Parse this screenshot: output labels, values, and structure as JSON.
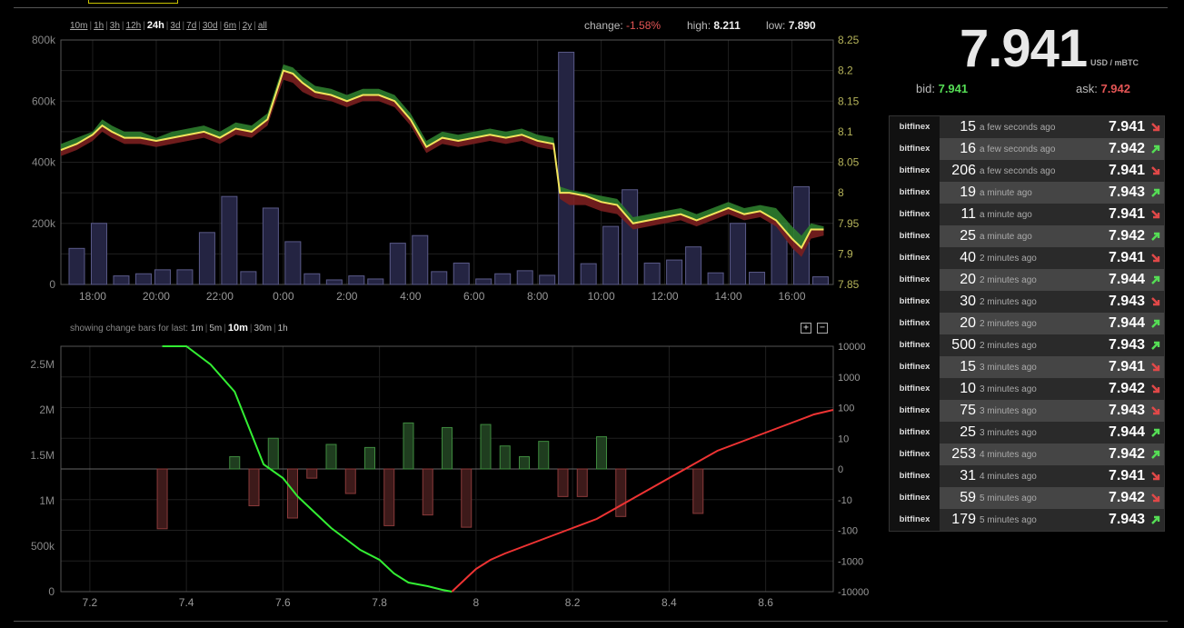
{
  "range_links": [
    "10m",
    "1h",
    "3h",
    "12h",
    "24h",
    "3d",
    "7d",
    "30d",
    "6m",
    "2y",
    "all"
  ],
  "active_range": "24h",
  "stats": {
    "change_label": "change:",
    "change": "-1.58%",
    "high_label": "high:",
    "high": "8.211",
    "low_label": "low:",
    "low": "7.890"
  },
  "change_bars": {
    "label": "showing change bars for last:",
    "options": [
      "1m",
      "5m",
      "10m",
      "30m",
      "1h"
    ],
    "active": "10m",
    "zoom_in": "+",
    "zoom_out": "−"
  },
  "ticker": {
    "price": "7.941",
    "unit": "USD / mBTC",
    "bid_label": "bid:",
    "bid": "7.941",
    "ask_label": "ask:",
    "ask": "7.942"
  },
  "colors": {
    "up": "#55dd55",
    "down": "#e04848",
    "price_line": "#f2e55c",
    "volume_fill": "#242442",
    "volume_stroke": "#5a5a88"
  },
  "trades": [
    {
      "exchange": "bitfinex",
      "amount": "15",
      "time": "a few seconds ago",
      "price": "7.941",
      "dir": "down"
    },
    {
      "exchange": "bitfinex",
      "amount": "16",
      "time": "a few seconds ago",
      "price": "7.942",
      "dir": "up"
    },
    {
      "exchange": "bitfinex",
      "amount": "206",
      "time": "a few seconds ago",
      "price": "7.941",
      "dir": "down"
    },
    {
      "exchange": "bitfinex",
      "amount": "19",
      "time": "a minute ago",
      "price": "7.943",
      "dir": "up"
    },
    {
      "exchange": "bitfinex",
      "amount": "11",
      "time": "a minute ago",
      "price": "7.941",
      "dir": "down"
    },
    {
      "exchange": "bitfinex",
      "amount": "25",
      "time": "a minute ago",
      "price": "7.942",
      "dir": "up"
    },
    {
      "exchange": "bitfinex",
      "amount": "40",
      "time": "2 minutes ago",
      "price": "7.941",
      "dir": "down"
    },
    {
      "exchange": "bitfinex",
      "amount": "20",
      "time": "2 minutes ago",
      "price": "7.944",
      "dir": "up"
    },
    {
      "exchange": "bitfinex",
      "amount": "30",
      "time": "2 minutes ago",
      "price": "7.943",
      "dir": "down"
    },
    {
      "exchange": "bitfinex",
      "amount": "20",
      "time": "2 minutes ago",
      "price": "7.944",
      "dir": "up"
    },
    {
      "exchange": "bitfinex",
      "amount": "500",
      "time": "2 minutes ago",
      "price": "7.943",
      "dir": "up"
    },
    {
      "exchange": "bitfinex",
      "amount": "15",
      "time": "3 minutes ago",
      "price": "7.941",
      "dir": "down"
    },
    {
      "exchange": "bitfinex",
      "amount": "10",
      "time": "3 minutes ago",
      "price": "7.942",
      "dir": "down"
    },
    {
      "exchange": "bitfinex",
      "amount": "75",
      "time": "3 minutes ago",
      "price": "7.943",
      "dir": "down"
    },
    {
      "exchange": "bitfinex",
      "amount": "25",
      "time": "3 minutes ago",
      "price": "7.944",
      "dir": "up"
    },
    {
      "exchange": "bitfinex",
      "amount": "253",
      "time": "4 minutes ago",
      "price": "7.942",
      "dir": "up"
    },
    {
      "exchange": "bitfinex",
      "amount": "31",
      "time": "4 minutes ago",
      "price": "7.941",
      "dir": "down"
    },
    {
      "exchange": "bitfinex",
      "amount": "59",
      "time": "5 minutes ago",
      "price": "7.942",
      "dir": "down"
    },
    {
      "exchange": "bitfinex",
      "amount": "179",
      "time": "5 minutes ago",
      "price": "7.943",
      "dir": "up"
    }
  ],
  "chart_data": [
    {
      "type": "line",
      "x_ticks": [
        "18:00",
        "20:00",
        "22:00",
        "0:00",
        "2:00",
        "4:00",
        "6:00",
        "8:00",
        "10:00",
        "12:00",
        "14:00",
        "16:00"
      ],
      "x_tick_hours": [
        18,
        20,
        22,
        24,
        26,
        28,
        30,
        32,
        34,
        36,
        38,
        40
      ],
      "x_range_hours": [
        17.0,
        41.3
      ],
      "y_left": {
        "ticks": [
          "0",
          "200k",
          "400k",
          "600k",
          "800k"
        ],
        "values": [
          0,
          200000,
          400000,
          600000,
          800000
        ],
        "range": [
          0,
          800000
        ]
      },
      "y_right": {
        "ticks": [
          "7.85",
          "7.9",
          "7.95",
          "8",
          "8.05",
          "8.1",
          "8.15",
          "8.2",
          "8.25"
        ],
        "values": [
          7.85,
          7.9,
          7.95,
          8,
          8.05,
          8.1,
          8.15,
          8.2,
          8.25
        ],
        "range": [
          7.85,
          8.25
        ]
      },
      "volume_hours": [
        17.5,
        18.2,
        18.9,
        19.6,
        20.2,
        20.9,
        21.6,
        22.3,
        22.9,
        23.6,
        24.3,
        24.9,
        25.6,
        26.3,
        26.9,
        27.6,
        28.3,
        28.9,
        29.6,
        30.3,
        30.9,
        31.6,
        32.3,
        32.9,
        33.6,
        34.3,
        34.9,
        35.6,
        36.3,
        36.9,
        37.6,
        38.3,
        38.9,
        39.6,
        40.3,
        40.9
      ],
      "volume": [
        118000,
        200000,
        28000,
        35000,
        48000,
        48000,
        170000,
        288000,
        42000,
        250000,
        140000,
        35000,
        15000,
        28000,
        18000,
        135000,
        160000,
        42000,
        70000,
        18000,
        35000,
        45000,
        30000,
        760000,
        68000,
        190000,
        310000,
        70000,
        80000,
        123000,
        38000,
        200000,
        40000,
        200000,
        320000,
        25000
      ],
      "price_hours": [
        17,
        17.5,
        18,
        18.3,
        18.6,
        19,
        19.5,
        20,
        20.5,
        21,
        21.5,
        22,
        22.5,
        23,
        23.5,
        24,
        24.3,
        24.6,
        25,
        25.5,
        26,
        26.5,
        27,
        27.5,
        28,
        28.5,
        29,
        29.5,
        30,
        30.5,
        31,
        31.5,
        32,
        32.5,
        32.7,
        33,
        33.5,
        34,
        34.5,
        35,
        35.5,
        36,
        36.5,
        37,
        37.5,
        38,
        38.5,
        39,
        39.5,
        40,
        40.3,
        40.6,
        41
      ],
      "price": [
        8.07,
        8.08,
        8.095,
        8.11,
        8.1,
        8.09,
        8.09,
        8.085,
        8.09,
        8.095,
        8.1,
        8.09,
        8.105,
        8.1,
        8.12,
        8.2,
        8.195,
        8.18,
        8.165,
        8.16,
        8.15,
        8.16,
        8.16,
        8.15,
        8.12,
        8.075,
        8.09,
        8.085,
        8.09,
        8.095,
        8.09,
        8.095,
        8.085,
        8.08,
        8.0,
        8.0,
        7.995,
        7.985,
        7.98,
        7.95,
        7.955,
        7.96,
        7.965,
        7.955,
        7.965,
        7.975,
        7.965,
        7.97,
        7.955,
        7.925,
        7.91,
        7.94,
        7.94
      ],
      "price_high": [
        8.08,
        8.09,
        8.1,
        8.12,
        8.11,
        8.1,
        8.1,
        8.09,
        8.1,
        8.105,
        8.11,
        8.1,
        8.115,
        8.11,
        8.13,
        8.21,
        8.205,
        8.19,
        8.175,
        8.17,
        8.16,
        8.17,
        8.17,
        8.16,
        8.13,
        8.085,
        8.1,
        8.095,
        8.1,
        8.105,
        8.1,
        8.105,
        8.095,
        8.09,
        8.01,
        8.005,
        8.0,
        7.995,
        7.99,
        7.96,
        7.965,
        7.97,
        7.975,
        7.965,
        7.975,
        7.985,
        7.975,
        7.98,
        7.975,
        7.945,
        7.93,
        7.95,
        7.945
      ],
      "price_low": [
        8.06,
        8.07,
        8.085,
        8.1,
        8.09,
        8.08,
        8.08,
        8.075,
        8.08,
        8.085,
        8.09,
        8.08,
        8.095,
        8.09,
        8.11,
        8.185,
        8.18,
        8.165,
        8.155,
        8.15,
        8.14,
        8.15,
        8.15,
        8.14,
        8.11,
        8.065,
        8.08,
        8.075,
        8.08,
        8.085,
        8.08,
        8.085,
        8.075,
        8.07,
        7.99,
        7.98,
        7.98,
        7.97,
        7.965,
        7.94,
        7.945,
        7.95,
        7.955,
        7.945,
        7.955,
        7.965,
        7.955,
        7.96,
        7.945,
        7.91,
        7.895,
        7.925,
        7.93
      ]
    },
    {
      "type": "bar",
      "x_ticks": [
        "7.2",
        "7.4",
        "7.6",
        "7.8",
        "8",
        "8.2",
        "8.4",
        "8.6"
      ],
      "x_tick_values": [
        7.2,
        7.4,
        7.6,
        7.8,
        8,
        8.2,
        8.4,
        8.6
      ],
      "x_range": [
        7.14,
        8.74
      ],
      "y_left": {
        "ticks": [
          "0",
          "500k",
          "1M",
          "1.5M",
          "2M",
          "2.5M"
        ],
        "values": [
          0,
          500000,
          1000000,
          1500000,
          2000000,
          2500000
        ],
        "range": [
          0,
          2700000
        ]
      },
      "y_right": {
        "ticks": [
          "10000",
          "1000",
          "100",
          "10",
          "0",
          "-10",
          "-100",
          "-1000",
          "-10000"
        ],
        "levels": [
          4,
          3,
          2,
          1,
          0,
          -1,
          -2,
          -3,
          -4
        ]
      },
      "bids_depth_x": [
        7.35,
        7.38,
        7.4,
        7.45,
        7.5,
        7.53,
        7.56,
        7.6,
        7.63,
        7.66,
        7.7,
        7.73,
        7.76,
        7.8,
        7.83,
        7.86,
        7.9,
        7.93,
        7.95
      ],
      "bids_depth": [
        2700000,
        2700000,
        2700000,
        2500000,
        2200000,
        1800000,
        1400000,
        1250000,
        1050000,
        900000,
        700000,
        580000,
        460000,
        350000,
        200000,
        100000,
        60000,
        20000,
        0
      ],
      "asks_depth_x": [
        7.95,
        7.98,
        8.0,
        8.03,
        8.06,
        8.1,
        8.15,
        8.2,
        8.25,
        8.3,
        8.35,
        8.4,
        8.45,
        8.5,
        8.55,
        8.6,
        8.65,
        8.7,
        8.74
      ],
      "asks_depth": [
        0,
        150000,
        250000,
        350000,
        420000,
        500000,
        600000,
        700000,
        800000,
        950000,
        1100000,
        1250000,
        1400000,
        1550000,
        1650000,
        1750000,
        1850000,
        1950000,
        2000000
      ],
      "change_bar_x": [
        7.35,
        7.5,
        7.54,
        7.58,
        7.62,
        7.66,
        7.7,
        7.74,
        7.78,
        7.82,
        7.86,
        7.9,
        7.94,
        7.98,
        8.02,
        8.06,
        8.1,
        8.14,
        8.18,
        8.22,
        8.26,
        8.3,
        8.46
      ],
      "change_bars": [
        -1.95,
        0.4,
        -1.2,
        1.0,
        -1.6,
        -0.3,
        0.8,
        -0.8,
        0.7,
        -1.85,
        1.5,
        -1.5,
        1.35,
        -1.9,
        1.45,
        0.75,
        0.4,
        0.9,
        -0.9,
        -0.9,
        1.05,
        -1.55,
        -1.45
      ]
    }
  ]
}
